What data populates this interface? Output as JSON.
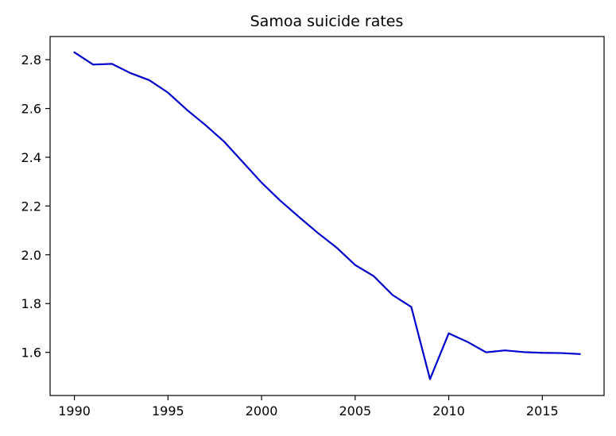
{
  "chart_data": {
    "type": "line",
    "title": "Samoa suicide rates",
    "xlabel": "",
    "ylabel": "",
    "xlim": [
      1988.7,
      2018.3
    ],
    "ylim": [
      1.423,
      2.895
    ],
    "x_ticks": [
      1990,
      1995,
      2000,
      2005,
      2010,
      2015
    ],
    "y_ticks": [
      1.6,
      1.8,
      2.0,
      2.2,
      2.4,
      2.6,
      2.8
    ],
    "grid": false,
    "legend": "none",
    "series": [
      {
        "color": "#0000cc",
        "x": [
          1990,
          1991,
          1992,
          1993,
          1994,
          1995,
          1996,
          1997,
          1998,
          1999,
          2000,
          2001,
          2002,
          2003,
          2004,
          2005,
          2006,
          2007,
          2008,
          2009,
          2010,
          2011,
          2012,
          2013,
          2014,
          2015,
          2016,
          2017
        ],
        "y": [
          2.83,
          2.78,
          2.783,
          2.745,
          2.716,
          2.665,
          2.595,
          2.532,
          2.464,
          2.38,
          2.296,
          2.222,
          2.155,
          2.09,
          2.03,
          1.958,
          1.912,
          1.835,
          1.786,
          1.49,
          1.678,
          1.643,
          1.6,
          1.608,
          1.601,
          1.598,
          1.597,
          1.593
        ]
      }
    ]
  }
}
